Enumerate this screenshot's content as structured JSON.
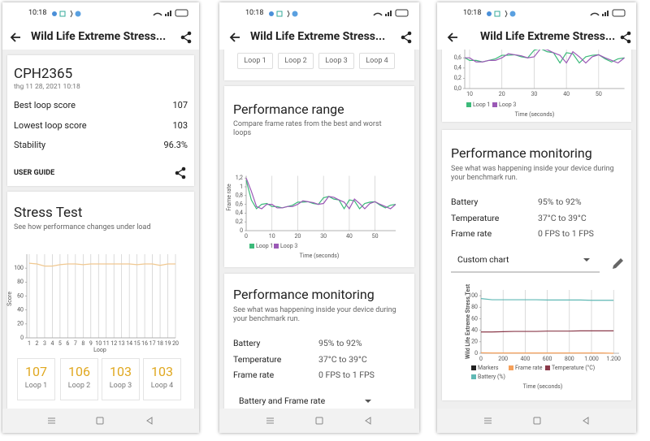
{
  "screens": [
    {
      "status_time": "10:18",
      "app_title": "Wild Life Extreme Stress...",
      "device": "CPH2365",
      "date": "thg 11 28, 2021 10:18",
      "stats": [
        {
          "label": "Best loop score",
          "value": "107"
        },
        {
          "label": "Lowest loop score",
          "value": "103"
        },
        {
          "label": "Stability",
          "value": "96.3%"
        }
      ],
      "user_guide": "USER GUIDE",
      "stress_test": {
        "title": "Stress Test",
        "subtitle": "See how performance changes under load",
        "chart": {
          "type": "line",
          "y_label": "Score",
          "x_label": "Loop",
          "categories": [
            "1",
            "2",
            "3",
            "4",
            "5",
            "6",
            "7",
            "8",
            "9",
            "10",
            "11",
            "12",
            "13",
            "14",
            "15",
            "16",
            "17",
            "18",
            "19",
            "20"
          ],
          "series": [
            {
              "color": "#f0c890",
              "values": [
                107,
                106,
                103,
                103,
                105,
                106,
                106,
                105,
                106,
                106,
                106,
                106,
                106,
                106,
                105,
                106,
                106,
                104,
                106,
                106
              ]
            }
          ],
          "ylim": [
            0,
            120
          ],
          "yticks": [
            0,
            20,
            40,
            60,
            80,
            100
          ],
          "grid": "x"
        }
      },
      "loops": [
        {
          "score": "107",
          "label": "Loop 1"
        },
        {
          "score": "106",
          "label": "Loop 2"
        },
        {
          "score": "103",
          "label": "Loop 3"
        },
        {
          "score": "103",
          "label": "Loop 4"
        }
      ]
    },
    {
      "status_time": "10:18",
      "app_title": "Wild Life Extreme Stress...",
      "loop_tabs": [
        "Loop 1",
        "Loop 2",
        "Loop 3",
        "Loop 4"
      ],
      "performance_range": {
        "title": "Performance range",
        "subtitle": "Compare frame rates from the best and worst loops",
        "chart": {
          "type": "line",
          "y_label": "Frame rate",
          "x_label": "Time (seconds)",
          "x": [
            0,
            2,
            4,
            6,
            8,
            10,
            12,
            14,
            16,
            18,
            20,
            22,
            24,
            26,
            28,
            30,
            32,
            34,
            36,
            38,
            40,
            42,
            44,
            46,
            48,
            50,
            52,
            54,
            56,
            58
          ],
          "series": [
            {
              "name": "Loop 1",
              "color": "#3cba7a",
              "values": [
                1.15,
                0.7,
                0.5,
                0.6,
                0.62,
                0.55,
                0.55,
                0.52,
                0.55,
                0.58,
                0.65,
                0.65,
                0.66,
                0.62,
                0.6,
                0.75,
                0.78,
                0.72,
                0.7,
                0.5,
                0.7,
                0.68,
                0.5,
                0.62,
                0.65,
                0.66,
                0.58,
                0.52,
                0.58,
                0.6
              ]
            },
            {
              "name": "Loop 3",
              "color": "#9b59b6",
              "values": [
                1.2,
                0.9,
                0.55,
                0.5,
                0.6,
                0.6,
                0.52,
                0.52,
                0.55,
                0.55,
                0.6,
                0.68,
                0.66,
                0.64,
                0.6,
                0.62,
                0.78,
                0.76,
                0.7,
                0.65,
                0.5,
                0.72,
                0.62,
                0.5,
                0.62,
                0.66,
                0.6,
                0.55,
                0.5,
                0.6
              ]
            }
          ],
          "xlim": [
            0,
            58
          ],
          "xticks": [
            0,
            10,
            20,
            30,
            40,
            50
          ],
          "ylim": [
            0,
            1.25
          ],
          "yticks": [
            0,
            {
              "value": 0.2,
              "label": "0,2"
            },
            {
              "value": 0.4,
              "label": "0,4"
            },
            {
              "value": 0.6,
              "label": "0,6"
            },
            {
              "value": 0.8,
              "label": "0,8"
            },
            1,
            {
              "value": 1.2,
              "label": "1,2"
            }
          ],
          "grid": "x"
        }
      },
      "performance_monitoring": {
        "title": "Performance monitoring",
        "subtitle": "See what was happening inside your device during your benchmark run.",
        "rows": [
          {
            "label": "Battery",
            "value": "95% to 92%"
          },
          {
            "label": "Temperature",
            "value": "37°C to 39°C"
          },
          {
            "label": "Frame rate",
            "value": "0 FPS to 1 FPS"
          }
        ],
        "dropdown": "Battery and Frame rate"
      }
    },
    {
      "status_time": "10:18",
      "app_title": "Wild Life Extreme Stress...",
      "performance_range_chart": {
        "type": "line",
        "x_label": "Time (seconds)",
        "xlim": [
          0,
          58
        ],
        "xticks": [
          10,
          20,
          30,
          40,
          50
        ],
        "ylim": [
          0,
          0.8
        ],
        "yticks": [
          {
            "value": 0,
            "label": "0,0"
          },
          {
            "value": 0.2,
            "label": "0,2"
          },
          {
            "value": 0.4,
            "label": "0,4"
          },
          {
            "value": 0.6,
            "label": "0,6"
          }
        ],
        "grid": "x"
      },
      "performance_monitoring": {
        "title": "Performance monitoring",
        "subtitle": "See what was happening inside your device during your benchmark run.",
        "rows": [
          {
            "label": "Battery",
            "value": "95% to 92%"
          },
          {
            "label": "Temperature",
            "value": "37°C to 39°C"
          },
          {
            "label": "Frame rate",
            "value": "0 FPS to 1 FPS"
          }
        ],
        "dropdown": "Custom chart",
        "chart": {
          "type": "line",
          "y_label": "Wild Life Extreme Stress Test",
          "x_label": "Time (seconds)",
          "markers": {
            "name": "Markers",
            "color": "#222222"
          },
          "x": [
            0,
            100,
            200,
            300,
            400,
            500,
            600,
            700,
            800,
            900,
            1000,
            1100,
            1200
          ],
          "series": [
            {
              "name": "Frame rate",
              "color": "#f5a05a",
              "values": [
                1,
                0.5,
                0.5,
                0.5,
                0.5,
                0.5,
                0.5,
                0.5,
                0.5,
                0.5,
                0.5,
                0.5,
                0
              ]
            },
            {
              "name": "Temperature (°C)",
              "color": "#8b3a4a",
              "values": [
                37,
                37,
                37.5,
                38,
                38,
                38,
                38.5,
                38.5,
                38.5,
                39,
                39,
                39,
                39
              ]
            },
            {
              "name": "Battery (%)",
              "color": "#5fb8b4",
              "values": [
                95,
                93,
                93,
                93,
                93,
                93,
                92.5,
                92.5,
                92.5,
                92.5,
                92,
                92,
                92
              ]
            }
          ],
          "xlim": [
            0,
            1250
          ],
          "xticks": [
            0,
            200,
            400,
            600,
            800,
            {
              "value": 1000,
              "label": "1.000"
            },
            {
              "value": 1200,
              "label": "1.200"
            }
          ],
          "ylim": [
            0,
            110
          ],
          "yticks": [
            0,
            20,
            40,
            60,
            80,
            100
          ],
          "grid": "x"
        }
      }
    }
  ]
}
